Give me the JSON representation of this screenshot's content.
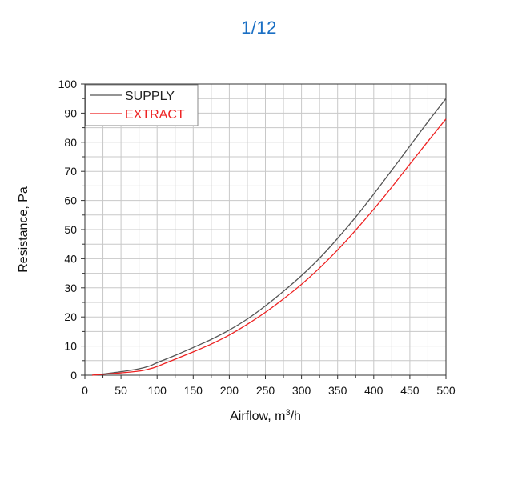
{
  "pager": {
    "text": "1/12"
  },
  "chart_data": {
    "type": "line",
    "title": "",
    "xlabel": "Airflow, m",
    "xlabel_sup": "3",
    "xlabel_suffix": "/h",
    "ylabel": "Resistance, Pa",
    "xlim": [
      0,
      500
    ],
    "ylim": [
      0,
      100
    ],
    "xticks": [
      0,
      50,
      100,
      150,
      200,
      250,
      300,
      350,
      400,
      450,
      500
    ],
    "yticks": [
      0,
      10,
      20,
      30,
      40,
      50,
      60,
      70,
      80,
      90,
      100
    ],
    "grid": true,
    "legend_position": "top-left",
    "series": [
      {
        "name": "SUPPLY",
        "color": "#555555",
        "x": [
          10,
          25,
          50,
          75,
          90,
          100,
          125,
          150,
          175,
          200,
          225,
          250,
          275,
          300,
          325,
          350,
          375,
          400,
          425,
          450,
          475,
          500
        ],
        "y": [
          0,
          0.4,
          1.2,
          2.2,
          3.2,
          4.3,
          6.8,
          9.5,
          12.3,
          15.5,
          19.3,
          23.8,
          28.8,
          34.2,
          40.2,
          47,
          54.3,
          62.2,
          70.4,
          78.7,
          87,
          95
        ]
      },
      {
        "name": "EXTRACT",
        "color": "#ee2222",
        "x": [
          10,
          25,
          50,
          75,
          90,
          100,
          125,
          150,
          175,
          200,
          225,
          250,
          275,
          300,
          325,
          350,
          375,
          400,
          425,
          450,
          475,
          500
        ],
        "y": [
          0,
          0.3,
          0.8,
          1.4,
          2.2,
          3,
          5.5,
          8,
          10.7,
          13.8,
          17.5,
          21.6,
          26.2,
          31.2,
          36.8,
          43,
          49.8,
          57,
          64.6,
          72.5,
          80.3,
          88
        ]
      }
    ]
  }
}
